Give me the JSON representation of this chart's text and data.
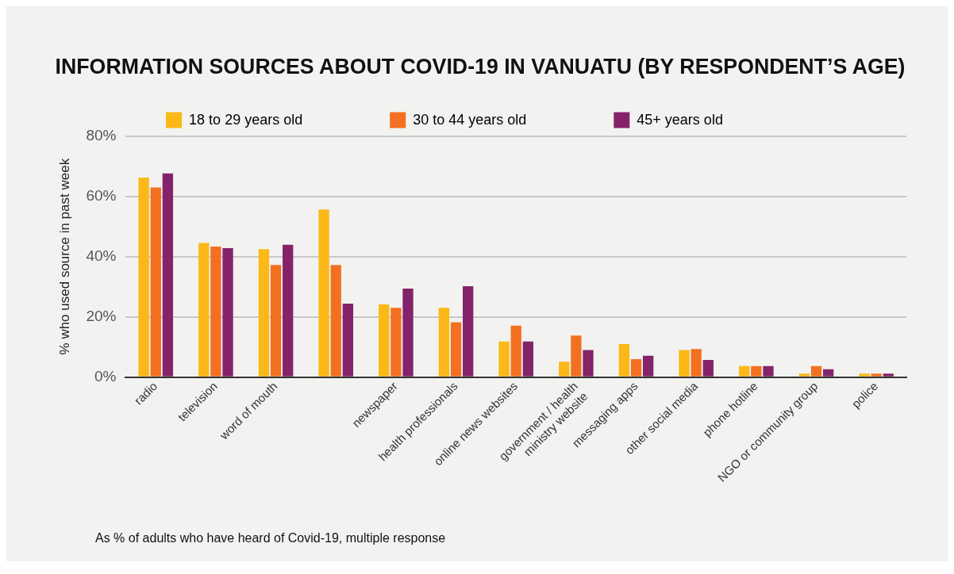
{
  "chart_data": {
    "type": "bar",
    "title": "INFORMATION SOURCES ABOUT COVID-19 IN VANUATU (BY RESPONDENT’S AGE)",
    "ylabel": "% who used source in past week",
    "categories": [
      "radio",
      "television",
      "word of mouth",
      null,
      "newspaper",
      "health professionals",
      "online news websites",
      "government / health\nministry website",
      "messaging apps",
      "other social media",
      "phone hotline",
      "NGO or community group",
      "police"
    ],
    "series": [
      {
        "name": "18 to 29 years old",
        "color": "#fbb817",
        "values": [
          66.2,
          44.5,
          42.5,
          55.6,
          24.1,
          23.0,
          11.8,
          5.1,
          11.0,
          9.0,
          3.7,
          1.2,
          1.2
        ]
      },
      {
        "name": "30 to 44 years old",
        "color": "#f37021",
        "values": [
          62.9,
          43.3,
          37.2,
          37.2,
          23.0,
          18.2,
          17.1,
          13.8,
          6.0,
          9.3,
          3.7,
          3.7,
          1.2
        ]
      },
      {
        "name": "45+ years old",
        "color": "#842369",
        "values": [
          67.6,
          42.8,
          43.9,
          24.4,
          29.4,
          30.2,
          11.8,
          9.0,
          7.1,
          5.7,
          3.7,
          2.6,
          1.2
        ]
      }
    ],
    "ylim": [
      0,
      80
    ],
    "yticks": [
      {
        "value": 0,
        "label": "0%"
      },
      {
        "value": 20,
        "label": "20%"
      },
      {
        "value": 40,
        "label": "40%"
      },
      {
        "value": 60,
        "label": "60%"
      },
      {
        "value": 80,
        "label": "80%"
      }
    ],
    "grid": "y",
    "legend": "top",
    "annotations": [
      "As % of adults who have heard of Covid-19, multiple response"
    ]
  }
}
